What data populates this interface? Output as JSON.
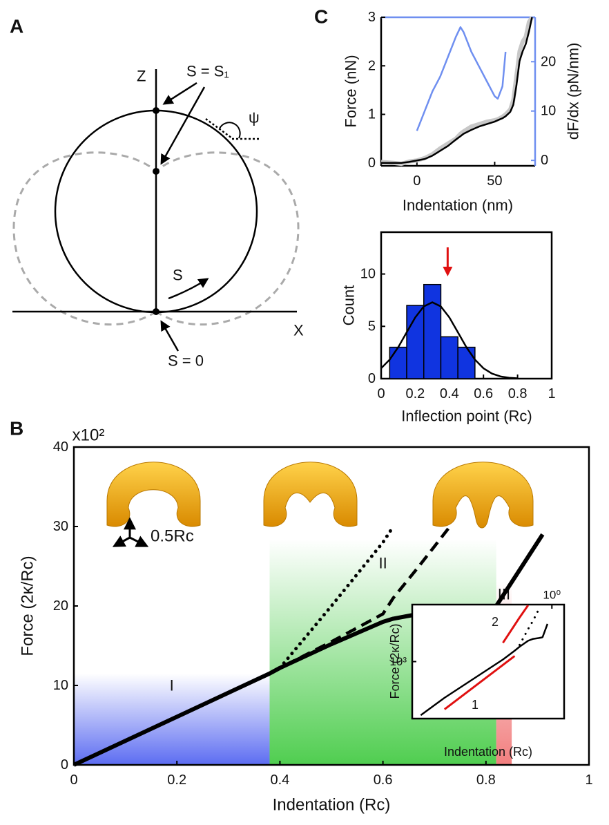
{
  "panel_labels": [
    "A",
    "B",
    "C"
  ],
  "diagram": {
    "labels": {
      "z": "Z",
      "s1": "S = S₁",
      "psi": "ψ",
      "s": "S",
      "x": "X",
      "s0": "S = 0"
    }
  },
  "chart_data": [
    {
      "type": "line",
      "xlabel": "Indentation (nm)",
      "ylabel": "Force (nN)",
      "y2label": "dF/dx (pN/nm)",
      "y2color": "#6f8ff0",
      "x": [
        -23,
        -15,
        -10,
        -5,
        0,
        5,
        10,
        15,
        20,
        25,
        28,
        30,
        35,
        40,
        45,
        50,
        52,
        55,
        57,
        60,
        62,
        64,
        66,
        68,
        70,
        72,
        74
      ],
      "xlim": [
        -23,
        76
      ],
      "xticks": [
        0,
        50
      ],
      "ylim": [
        -0.06,
        3
      ],
      "yticks": [
        0,
        1,
        2,
        3
      ],
      "y2lim": [
        -1.1,
        29
      ],
      "y2ticks": [
        0,
        10,
        20
      ],
      "series": [
        {
          "color": "#c8c8c8",
          "style": "solid",
          "values": [
            0.02,
            0,
            -0.02,
            0.03,
            0.05,
            0.1,
            0.18,
            0.3,
            0.4,
            0.5,
            0.6,
            0.65,
            0.75,
            0.8,
            0.85,
            0.88,
            0.9,
            0.95,
            1.0,
            1.1,
            1.3,
            1.8,
            2.3,
            2.5,
            2.6,
            2.9,
            3.0
          ]
        },
        {
          "color": "#000000",
          "style": "solid",
          "values": [
            0,
            0,
            0,
            0.02,
            0.05,
            0.08,
            0.15,
            0.25,
            0.35,
            0.48,
            0.55,
            0.6,
            0.68,
            0.75,
            0.8,
            0.85,
            0.88,
            0.92,
            0.96,
            1.05,
            1.2,
            1.6,
            2.1,
            2.3,
            2.45,
            2.7,
            3.0
          ]
        },
        {
          "color": "#6f8ff0",
          "style": "solid",
          "axis": "y2",
          "values": [
            null,
            null,
            null,
            null,
            6,
            10,
            14,
            17,
            21,
            25,
            27,
            26,
            22,
            19,
            16,
            13,
            12.5,
            15,
            22,
            null,
            null,
            null,
            null,
            null,
            null,
            null,
            null
          ]
        }
      ]
    },
    {
      "type": "histogram",
      "xlabel": "Inflection point (Rc)",
      "ylabel": "Count",
      "bins": [
        0.05,
        0.15,
        0.25,
        0.35,
        0.45,
        0.55
      ],
      "values": [
        3,
        7,
        9,
        4,
        3
      ],
      "color": "#1034e0",
      "fit": {
        "color": "#000000",
        "x": [
          0,
          0.05,
          0.1,
          0.15,
          0.2,
          0.25,
          0.3,
          0.35,
          0.4,
          0.45,
          0.5,
          0.55,
          0.6,
          0.65,
          0.7,
          0.75,
          0.8
        ],
        "values": [
          0.99,
          1.82,
          3.0,
          4.43,
          5.85,
          6.9,
          7.3,
          6.9,
          5.85,
          4.43,
          3.0,
          1.82,
          0.99,
          0.48,
          0.21,
          0.08,
          0.03
        ]
      },
      "arrow_x": 0.39,
      "arrow_color": "#e01010",
      "xlim": [
        0,
        1
      ],
      "xticks": [
        0,
        0.2,
        0.4,
        0.6,
        0.8,
        1
      ],
      "ylim": [
        0,
        14
      ],
      "yticks": [
        0,
        5,
        10
      ]
    },
    {
      "type": "line",
      "xlabel": "Indentation (Rc)",
      "ylabel": "Force (2κ/Rc)",
      "y_exponent": "x10²",
      "annotations": [
        "0.5Rc"
      ],
      "x": [
        0,
        0.38,
        0.4,
        0.5,
        0.6,
        0.62,
        0.67,
        0.73,
        0.81,
        0.82,
        0.91
      ],
      "xlim": [
        0,
        1
      ],
      "xticks": [
        0,
        0.2,
        0.4,
        0.6,
        0.8,
        1
      ],
      "ylim": [
        0,
        40
      ],
      "yticks": [
        0,
        10,
        20,
        30,
        40
      ],
      "regions": [
        {
          "label": "I",
          "x": [
            0,
            0.38
          ],
          "ytop": 11.5,
          "color": "#4a5cf0"
        },
        {
          "label": "II",
          "x": [
            0.38,
            0.82
          ],
          "ytop": 28.4,
          "color": "#3cc83c"
        },
        {
          "label": "III",
          "x": [
            0.82,
            0.85
          ],
          "ytop": 23,
          "color": "#f07070"
        }
      ],
      "series": [
        {
          "color": "#000000",
          "style": "solid",
          "values": [
            0,
            11.5,
            12.2,
            15.2,
            18,
            18.4,
            19,
            19.3,
            19.8,
            20,
            29
          ]
        },
        {
          "color": "#000000",
          "style": "dotted",
          "values": [
            null,
            null,
            12.2,
            20,
            28,
            30,
            null,
            null,
            null,
            null,
            null
          ]
        },
        {
          "color": "#000000",
          "style": "dashed",
          "values": [
            null,
            11.5,
            12.2,
            15.5,
            19,
            21,
            25,
            30,
            null,
            null,
            null
          ]
        }
      ]
    },
    {
      "type": "line",
      "log_scale": true,
      "xlabel": "Indentation (Rc)",
      "ylabel": "Force (2κ/Rc)",
      "annotations": [
        "1",
        "2"
      ],
      "x": [
        0.06,
        0.1,
        0.35,
        0.38,
        0.45,
        0.5,
        0.6,
        0.67,
        0.75,
        0.81,
        0.82,
        0.91
      ],
      "xlim": [
        0.05,
        1.3
      ],
      "xticks": [
        {
          "value": 1,
          "label": "10⁰"
        }
      ],
      "ylim": [
        200,
        5000
      ],
      "yticks": [
        {
          "value": 1000,
          "label": "10³"
        }
      ],
      "series": [
        {
          "color": "#000000",
          "style": "solid",
          "values": [
            220,
            360,
            1060,
            1150,
            1360,
            1520,
            1800,
            1900,
            1940,
            1980,
            2000,
            2900
          ]
        },
        {
          "color": "#000000",
          "style": "dotted",
          "values": [
            null,
            null,
            null,
            null,
            null,
            1600,
            2500,
            3200,
            4300,
            null,
            null,
            null
          ]
        },
        {
          "color": "#e01010",
          "style": "solid",
          "values": [
            null,
            260,
            910,
            990,
            1170,
            null,
            null,
            null,
            null,
            null,
            null,
            null
          ]
        },
        {
          "color": "#e01010",
          "style": "solid",
          "values": [
            null,
            null,
            1700,
            2000,
            2810,
            3470,
            4900,
            null,
            null,
            null,
            null,
            null
          ]
        }
      ]
    }
  ]
}
